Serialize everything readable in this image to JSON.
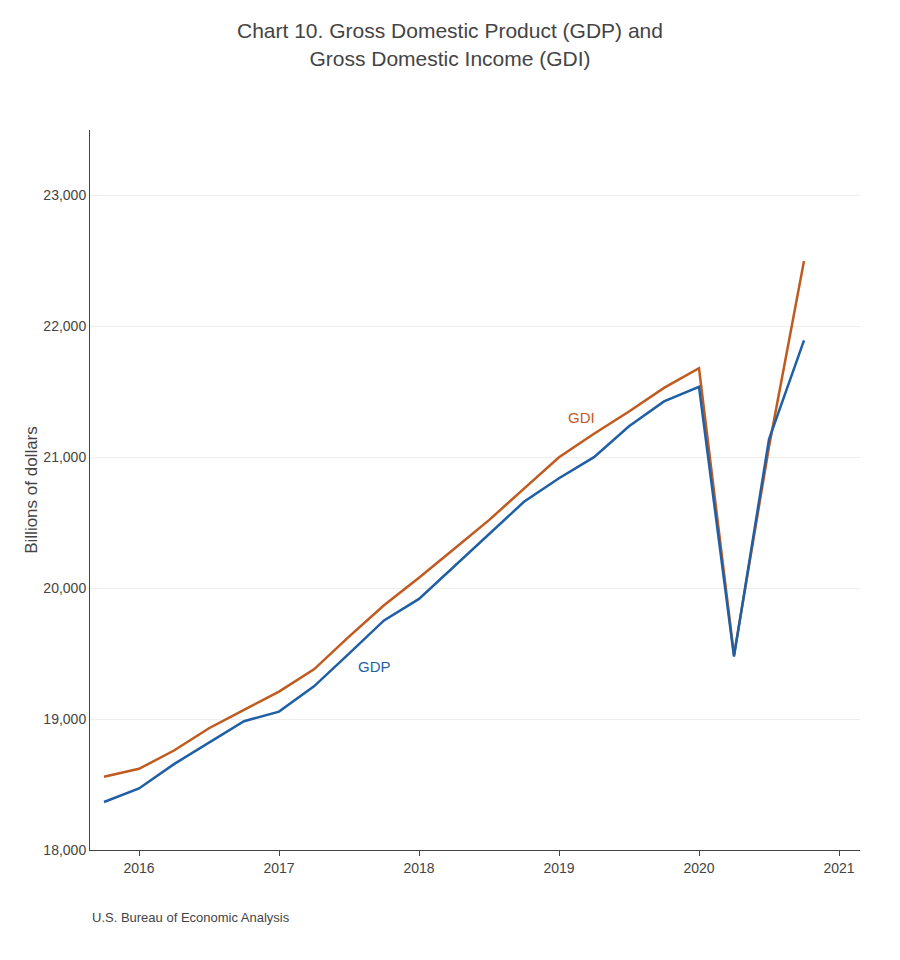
{
  "chart_data": {
    "type": "line",
    "title": "Chart 10. Gross Domestic Product (GDP) and\nGross Domestic Income (GDI)",
    "ylabel": "Billions of dollars",
    "source": "U.S. Bureau of Economic Analysis",
    "x": [
      2015.75,
      2016.0,
      2016.25,
      2016.5,
      2016.75,
      2017.0,
      2017.25,
      2017.5,
      2017.75,
      2018.0,
      2018.25,
      2018.5,
      2018.75,
      2019.0,
      2019.25,
      2019.5,
      2019.75,
      2020.0,
      2020.25,
      2020.5,
      2020.75
    ],
    "series": [
      {
        "name": "GDI",
        "color": "#C05A1F",
        "values": [
          18560,
          18620,
          18760,
          18930,
          19070,
          19210,
          19380,
          19630,
          19870,
          20080,
          20300,
          20520,
          20760,
          21000,
          21180,
          21350,
          21530,
          21680,
          19490,
          21080,
          22500
        ]
      },
      {
        "name": "GDP",
        "color": "#1F5FA6",
        "values": [
          18367,
          18470,
          18656,
          18821,
          18984,
          19057,
          19250,
          19500,
          19754,
          19918,
          20163,
          20411,
          20660,
          20840,
          21001,
          21237,
          21427,
          21538,
          19477,
          21138,
          21893
        ]
      }
    ],
    "annotations": [
      {
        "text": "GDI",
        "x": 2019.05,
        "y": 21220,
        "color": "#C05A1F"
      },
      {
        "text": "GDP",
        "x": 2017.55,
        "y": 19320,
        "color": "#1F5FA6"
      }
    ],
    "xlim": [
      2015.65,
      2021.15
    ],
    "xticks": [
      2016,
      2017,
      2018,
      2019,
      2020,
      2021
    ],
    "ylim": [
      18000,
      23500
    ],
    "yticks": [
      {
        "value": 18000,
        "label": "18,000"
      },
      {
        "value": 19000,
        "label": "19,000"
      },
      {
        "value": 20000,
        "label": "20,000"
      },
      {
        "value": 21000,
        "label": "21,000"
      },
      {
        "value": 22000,
        "label": "22,000"
      },
      {
        "value": 23000,
        "label": "23,000"
      }
    ],
    "grid": "y"
  }
}
